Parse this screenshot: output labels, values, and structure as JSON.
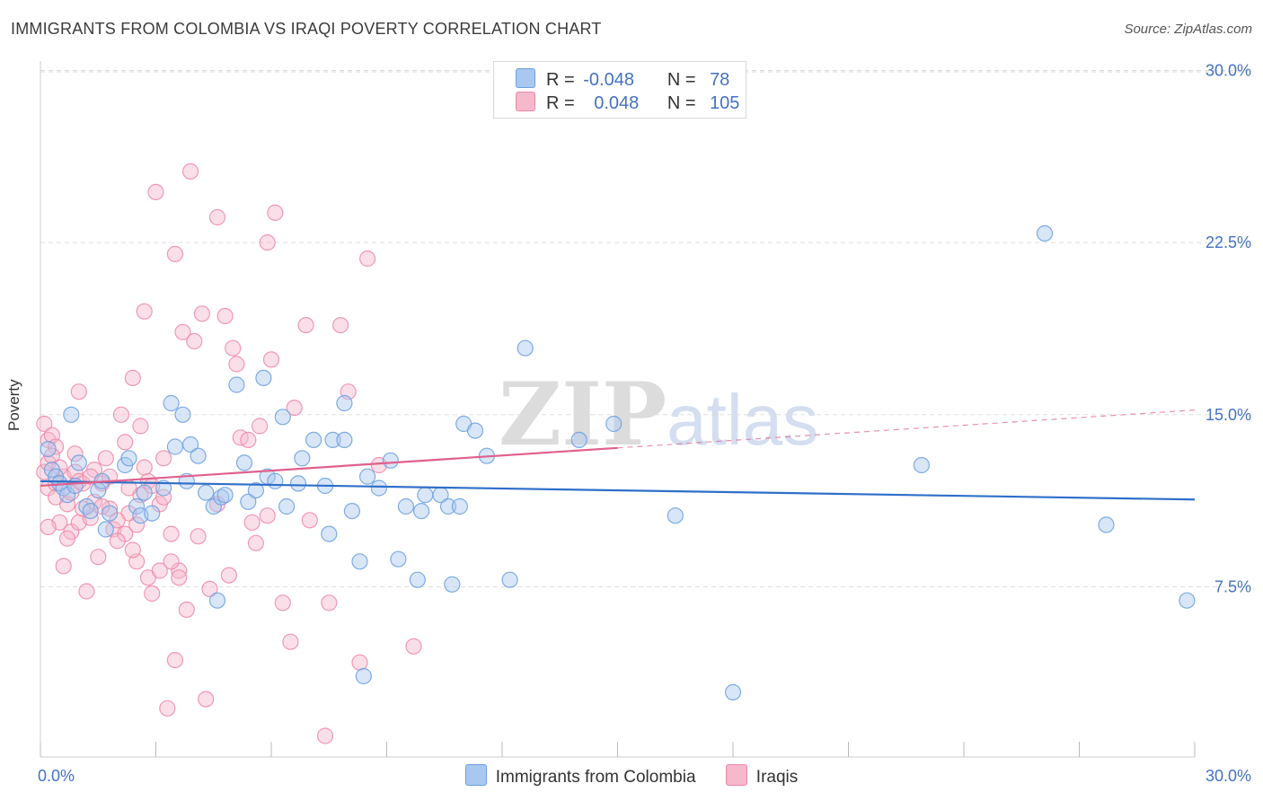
{
  "title": "IMMIGRANTS FROM COLOMBIA VS IRAQI POVERTY CORRELATION CHART",
  "source": "Source: ZipAtlas.com",
  "watermark": {
    "part1": "ZIP",
    "part2": "atlas"
  },
  "colors": {
    "colombia_fill": "#a8c8f0",
    "colombia_stroke": "#6a9fe0",
    "colombia_line": "#2f6fca",
    "iraqi_fill": "#f6b8cb",
    "iraqi_stroke": "#ee88a8",
    "iraqi_line": "#e0608e",
    "tick_label": "#4472c4",
    "grid": "#dddddd"
  },
  "legend_top": [
    {
      "r_label": "R =",
      "r_value": "-0.048",
      "n_label": "N =",
      "n_value": "78"
    },
    {
      "r_label": "R =",
      "r_value": "0.048",
      "n_label": "N =",
      "n_value": "105"
    }
  ],
  "chart_data": {
    "type": "scatter",
    "title": "IMMIGRANTS FROM COLOMBIA VS IRAQI POVERTY CORRELATION CHART",
    "xlabel": "",
    "ylabel": "Poverty",
    "xlim": [
      0,
      30
    ],
    "ylim": [
      0,
      30.8
    ],
    "x_tick_labels": [
      "0.0%",
      "30.0%"
    ],
    "y_ticks": [
      7.5,
      15.0,
      22.5,
      30.0
    ],
    "y_tick_labels": [
      "7.5%",
      "15.0%",
      "22.5%",
      "30.0%"
    ],
    "grid": "horizontal dashed",
    "legend_position": "bottom",
    "series": [
      {
        "name": "Immigrants from Colombia",
        "r": -0.048,
        "n": 78,
        "trend": {
          "x": [
            0,
            30
          ],
          "y": [
            12.1,
            11.3
          ],
          "dashed_from": null
        },
        "points": [
          [
            0.2,
            13.5
          ],
          [
            0.3,
            12.6
          ],
          [
            0.4,
            12.3
          ],
          [
            0.5,
            12.0
          ],
          [
            0.6,
            11.8
          ],
          [
            0.7,
            11.5
          ],
          [
            0.8,
            15.0
          ],
          [
            0.9,
            11.9
          ],
          [
            1.0,
            12.9
          ],
          [
            1.2,
            11.0
          ],
          [
            1.3,
            10.8
          ],
          [
            1.5,
            11.7
          ],
          [
            1.6,
            12.1
          ],
          [
            1.7,
            10.0
          ],
          [
            1.8,
            10.7
          ],
          [
            2.2,
            12.8
          ],
          [
            2.3,
            13.1
          ],
          [
            2.5,
            11.0
          ],
          [
            2.6,
            10.6
          ],
          [
            2.7,
            11.6
          ],
          [
            2.9,
            10.7
          ],
          [
            3.2,
            11.8
          ],
          [
            3.4,
            15.5
          ],
          [
            3.5,
            13.6
          ],
          [
            3.7,
            15.0
          ],
          [
            3.8,
            12.1
          ],
          [
            3.9,
            13.7
          ],
          [
            4.1,
            13.2
          ],
          [
            4.3,
            11.6
          ],
          [
            4.5,
            11.0
          ],
          [
            4.6,
            6.9
          ],
          [
            4.7,
            11.4
          ],
          [
            4.8,
            11.5
          ],
          [
            5.1,
            16.3
          ],
          [
            5.3,
            12.9
          ],
          [
            5.4,
            11.2
          ],
          [
            5.6,
            11.7
          ],
          [
            5.8,
            16.6
          ],
          [
            5.9,
            12.3
          ],
          [
            6.1,
            12.1
          ],
          [
            6.3,
            14.9
          ],
          [
            6.4,
            11.0
          ],
          [
            6.7,
            12.0
          ],
          [
            6.8,
            13.1
          ],
          [
            7.1,
            13.9
          ],
          [
            7.4,
            11.9
          ],
          [
            7.5,
            9.8
          ],
          [
            7.6,
            13.9
          ],
          [
            7.9,
            15.5
          ],
          [
            7.9,
            13.9
          ],
          [
            8.1,
            10.8
          ],
          [
            8.3,
            8.6
          ],
          [
            8.4,
            3.6
          ],
          [
            8.5,
            12.3
          ],
          [
            8.8,
            11.8
          ],
          [
            9.1,
            13.0
          ],
          [
            9.3,
            8.7
          ],
          [
            9.5,
            11.0
          ],
          [
            9.8,
            7.8
          ],
          [
            9.9,
            10.8
          ],
          [
            10.0,
            11.5
          ],
          [
            10.4,
            11.5
          ],
          [
            10.6,
            11.0
          ],
          [
            10.7,
            7.6
          ],
          [
            10.9,
            11.0
          ],
          [
            11.0,
            14.6
          ],
          [
            11.3,
            14.3
          ],
          [
            11.6,
            13.2
          ],
          [
            12.2,
            7.8
          ],
          [
            12.6,
            17.9
          ],
          [
            14.0,
            13.9
          ],
          [
            14.9,
            14.6
          ],
          [
            16.5,
            10.6
          ],
          [
            18.0,
            2.9
          ],
          [
            22.9,
            12.8
          ],
          [
            26.1,
            22.9
          ],
          [
            27.7,
            10.2
          ],
          [
            29.8,
            6.9
          ]
        ]
      },
      {
        "name": "Iraqis",
        "r": 0.048,
        "n": 105,
        "trend": {
          "x": [
            0,
            30
          ],
          "y": [
            11.9,
            15.2
          ],
          "dashed_from": 15.0
        },
        "points": [
          [
            0.1,
            14.6
          ],
          [
            0.1,
            12.5
          ],
          [
            0.2,
            13.9
          ],
          [
            0.2,
            12.9
          ],
          [
            0.2,
            11.8
          ],
          [
            0.3,
            14.1
          ],
          [
            0.4,
            13.6
          ],
          [
            0.4,
            12.0
          ],
          [
            0.5,
            10.3
          ],
          [
            0.6,
            8.4
          ],
          [
            0.6,
            12.3
          ],
          [
            0.7,
            11.1
          ],
          [
            0.8,
            9.9
          ],
          [
            0.8,
            11.6
          ],
          [
            0.9,
            12.5
          ],
          [
            1.0,
            10.3
          ],
          [
            1.0,
            16.0
          ],
          [
            1.1,
            12.0
          ],
          [
            1.2,
            7.3
          ],
          [
            1.3,
            10.5
          ],
          [
            1.4,
            11.2
          ],
          [
            1.5,
            8.8
          ],
          [
            1.6,
            12.0
          ],
          [
            1.7,
            13.1
          ],
          [
            1.8,
            10.9
          ],
          [
            1.9,
            10.0
          ],
          [
            2.1,
            15.0
          ],
          [
            2.2,
            13.8
          ],
          [
            2.2,
            9.8
          ],
          [
            2.3,
            10.7
          ],
          [
            2.4,
            16.6
          ],
          [
            2.5,
            8.6
          ],
          [
            2.6,
            11.5
          ],
          [
            2.6,
            14.5
          ],
          [
            2.7,
            19.5
          ],
          [
            2.8,
            12.1
          ],
          [
            2.8,
            7.9
          ],
          [
            2.9,
            11.9
          ],
          [
            3.0,
            24.7
          ],
          [
            3.1,
            11.1
          ],
          [
            3.2,
            13.1
          ],
          [
            3.3,
            2.2
          ],
          [
            3.4,
            9.8
          ],
          [
            3.5,
            4.3
          ],
          [
            3.5,
            22.0
          ],
          [
            3.6,
            8.2
          ],
          [
            3.7,
            18.6
          ],
          [
            3.8,
            6.5
          ],
          [
            3.9,
            25.6
          ],
          [
            4.0,
            18.2
          ],
          [
            4.1,
            9.7
          ],
          [
            4.2,
            19.4
          ],
          [
            4.3,
            2.6
          ],
          [
            4.4,
            7.4
          ],
          [
            4.6,
            23.6
          ],
          [
            4.6,
            11.1
          ],
          [
            4.8,
            19.3
          ],
          [
            4.9,
            8.0
          ],
          [
            5.0,
            17.9
          ],
          [
            5.1,
            17.2
          ],
          [
            5.2,
            14.0
          ],
          [
            5.4,
            13.9
          ],
          [
            5.5,
            10.3
          ],
          [
            5.6,
            9.4
          ],
          [
            5.7,
            14.5
          ],
          [
            5.9,
            10.6
          ],
          [
            5.9,
            22.5
          ],
          [
            6.0,
            17.4
          ],
          [
            6.1,
            23.8
          ],
          [
            6.3,
            6.8
          ],
          [
            6.5,
            5.1
          ],
          [
            6.6,
            15.3
          ],
          [
            6.9,
            18.9
          ],
          [
            7.0,
            10.4
          ],
          [
            7.4,
            1.0
          ],
          [
            7.5,
            6.8
          ],
          [
            7.8,
            18.9
          ],
          [
            8.0,
            16.0
          ],
          [
            8.3,
            4.2
          ],
          [
            8.5,
            21.8
          ],
          [
            8.8,
            12.8
          ],
          [
            9.7,
            4.9
          ],
          [
            0.3,
            13.2
          ],
          [
            0.5,
            12.7
          ],
          [
            0.9,
            13.3
          ],
          [
            1.1,
            10.9
          ],
          [
            1.4,
            12.6
          ],
          [
            1.8,
            12.3
          ],
          [
            2.0,
            9.5
          ],
          [
            2.3,
            11.8
          ],
          [
            2.5,
            10.2
          ],
          [
            2.7,
            12.7
          ],
          [
            3.2,
            11.4
          ],
          [
            3.4,
            8.6
          ],
          [
            3.6,
            7.9
          ],
          [
            0.2,
            10.1
          ],
          [
            0.4,
            11.4
          ],
          [
            0.7,
            9.6
          ],
          [
            1.0,
            12.1
          ],
          [
            1.3,
            12.3
          ],
          [
            1.6,
            11.0
          ],
          [
            2.0,
            10.4
          ],
          [
            2.4,
            9.1
          ],
          [
            2.9,
            7.2
          ],
          [
            3.1,
            8.2
          ]
        ]
      }
    ]
  }
}
